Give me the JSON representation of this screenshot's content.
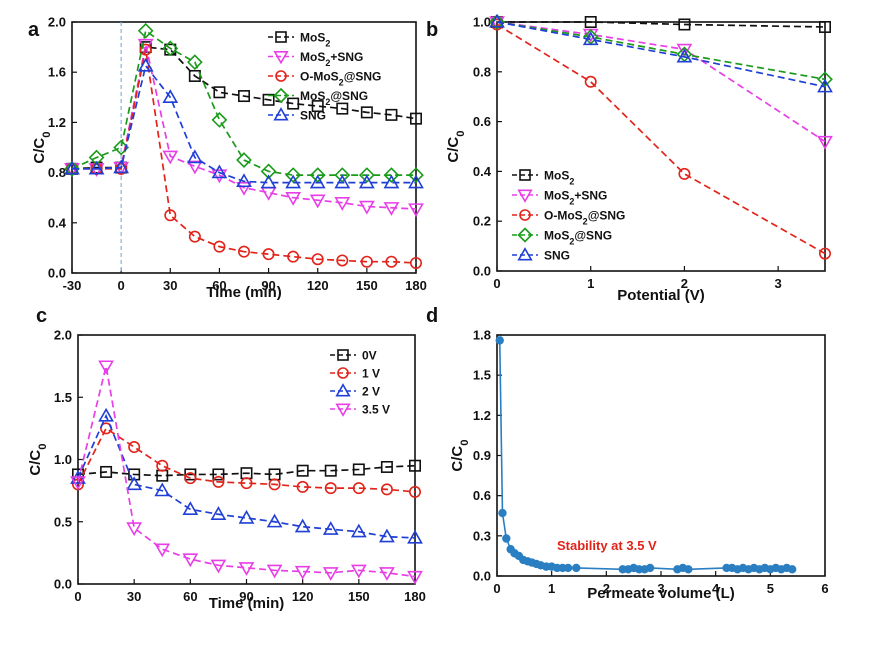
{
  "chart_data": [
    {
      "id": "a",
      "panel_label": "a",
      "type": "line",
      "xlabel": "Time (min)",
      "ylabel": "C/C0",
      "xlim": [
        -30,
        180
      ],
      "ylim": [
        0.0,
        2.0
      ],
      "xticks": [
        -30,
        0,
        30,
        60,
        90,
        120,
        150,
        180
      ],
      "yticks": [
        0.0,
        0.4,
        0.8,
        1.2,
        1.6,
        2.0
      ],
      "ytick_labels": [
        "0.0",
        "0.4",
        "0.8",
        "1.2",
        "1.6",
        "2.0"
      ],
      "vline_x": 0,
      "legend_position": "top-right",
      "series": [
        {
          "name": "MoS2",
          "color": "#111111",
          "marker": "square",
          "x": [
            -30,
            -15,
            0,
            15,
            30,
            45,
            60,
            75,
            90,
            105,
            120,
            135,
            150,
            165,
            180
          ],
          "y": [
            0.83,
            0.84,
            0.84,
            1.8,
            1.78,
            1.57,
            1.44,
            1.41,
            1.38,
            1.35,
            1.33,
            1.31,
            1.28,
            1.26,
            1.23
          ]
        },
        {
          "name": "MoS2+SNG",
          "color": "#e83ee8",
          "marker": "triangle-down",
          "x": [
            -30,
            -15,
            0,
            15,
            30,
            45,
            60,
            75,
            90,
            105,
            120,
            135,
            150,
            165,
            180
          ],
          "y": [
            0.83,
            0.83,
            0.84,
            1.82,
            0.93,
            0.85,
            0.78,
            0.68,
            0.64,
            0.6,
            0.58,
            0.56,
            0.53,
            0.52,
            0.51
          ]
        },
        {
          "name": "O-MoS2@SNG",
          "color": "#e2231a",
          "marker": "circle",
          "x": [
            -30,
            -15,
            0,
            15,
            30,
            45,
            60,
            75,
            90,
            105,
            120,
            135,
            150,
            165,
            180
          ],
          "y": [
            0.83,
            0.83,
            0.83,
            1.78,
            0.46,
            0.29,
            0.21,
            0.17,
            0.15,
            0.13,
            0.11,
            0.1,
            0.09,
            0.09,
            0.08
          ]
        },
        {
          "name": "MoS2@SNG",
          "color": "#1a9b1a",
          "marker": "diamond",
          "x": [
            -30,
            -15,
            0,
            15,
            30,
            45,
            60,
            75,
            90,
            105,
            120,
            135,
            150,
            165,
            180
          ],
          "y": [
            0.83,
            0.92,
            1.0,
            1.93,
            1.79,
            1.68,
            1.22,
            0.9,
            0.81,
            0.78,
            0.78,
            0.78,
            0.78,
            0.78,
            0.78
          ]
        },
        {
          "name": "SNG",
          "color": "#1f3fd6",
          "marker": "triangle-up",
          "x": [
            -30,
            -15,
            0,
            15,
            30,
            45,
            60,
            75,
            90,
            105,
            120,
            135,
            150,
            165,
            180
          ],
          "y": [
            0.83,
            0.83,
            0.84,
            1.65,
            1.4,
            0.92,
            0.8,
            0.73,
            0.72,
            0.72,
            0.72,
            0.72,
            0.72,
            0.72,
            0.72
          ]
        }
      ]
    },
    {
      "id": "b",
      "panel_label": "b",
      "type": "line",
      "xlabel": "Potential (V)",
      "ylabel": "C/C0",
      "xlim": [
        0,
        3.5
      ],
      "ylim": [
        0.0,
        1.0
      ],
      "xticks": [
        0,
        1,
        2,
        3
      ],
      "yticks": [
        0.0,
        0.2,
        0.4,
        0.6,
        0.8,
        1.0
      ],
      "ytick_labels": [
        "0.0",
        "0.2",
        "0.4",
        "0.6",
        "0.8",
        "1.0"
      ],
      "legend_position": "middle-left",
      "series": [
        {
          "name": "MoS2",
          "color": "#111111",
          "marker": "square",
          "x": [
            0,
            1,
            2,
            3.5
          ],
          "y": [
            1.0,
            1.0,
            0.99,
            0.98
          ]
        },
        {
          "name": "MoS2+SNG",
          "color": "#e83ee8",
          "marker": "triangle-down",
          "x": [
            0,
            1,
            2,
            3.5
          ],
          "y": [
            1.0,
            0.95,
            0.89,
            0.52
          ]
        },
        {
          "name": "O-MoS2@SNG",
          "color": "#e2231a",
          "marker": "circle",
          "x": [
            0,
            1,
            2,
            3.5
          ],
          "y": [
            0.99,
            0.76,
            0.39,
            0.07
          ]
        },
        {
          "name": "MoS2@SNG",
          "color": "#1a9b1a",
          "marker": "diamond",
          "x": [
            0,
            1,
            2,
            3.5
          ],
          "y": [
            1.0,
            0.94,
            0.87,
            0.77
          ]
        },
        {
          "name": "SNG",
          "color": "#1f3fd6",
          "marker": "triangle-up",
          "x": [
            0,
            1,
            2,
            3.5
          ],
          "y": [
            1.0,
            0.93,
            0.86,
            0.74
          ]
        }
      ]
    },
    {
      "id": "c",
      "panel_label": "c",
      "type": "line",
      "xlabel": "Time (min)",
      "ylabel": "C/C0",
      "xlim": [
        0,
        180
      ],
      "ylim": [
        0.0,
        2.0
      ],
      "xticks": [
        0,
        30,
        60,
        90,
        120,
        150,
        180
      ],
      "yticks": [
        0.0,
        0.5,
        1.0,
        1.5,
        2.0
      ],
      "ytick_labels": [
        "0.0",
        "0.5",
        "1.0",
        "1.5",
        "2.0"
      ],
      "legend_position": "top-right",
      "series": [
        {
          "name": "0V",
          "color": "#111111",
          "marker": "square",
          "x": [
            0,
            15,
            30,
            45,
            60,
            75,
            90,
            105,
            120,
            135,
            150,
            165,
            180
          ],
          "y": [
            0.88,
            0.9,
            0.88,
            0.87,
            0.88,
            0.88,
            0.89,
            0.88,
            0.91,
            0.91,
            0.92,
            0.94,
            0.95
          ]
        },
        {
          "name": "1 V",
          "color": "#e2231a",
          "marker": "circle",
          "x": [
            0,
            15,
            30,
            45,
            60,
            75,
            90,
            105,
            120,
            135,
            150,
            165,
            180
          ],
          "y": [
            0.8,
            1.25,
            1.1,
            0.95,
            0.85,
            0.82,
            0.81,
            0.8,
            0.78,
            0.77,
            0.77,
            0.76,
            0.74
          ]
        },
        {
          "name": "2 V",
          "color": "#1f3fd6",
          "marker": "triangle-up",
          "x": [
            0,
            15,
            30,
            45,
            60,
            75,
            90,
            105,
            120,
            135,
            150,
            165,
            180
          ],
          "y": [
            0.85,
            1.35,
            0.8,
            0.75,
            0.6,
            0.56,
            0.53,
            0.5,
            0.46,
            0.44,
            0.42,
            0.38,
            0.37
          ]
        },
        {
          "name": "3.5 V",
          "color": "#e83ee8",
          "marker": "triangle-down",
          "x": [
            0,
            15,
            30,
            45,
            60,
            75,
            90,
            105,
            120,
            135,
            150,
            165,
            180
          ],
          "y": [
            0.82,
            1.75,
            0.45,
            0.28,
            0.2,
            0.15,
            0.13,
            0.11,
            0.1,
            0.09,
            0.11,
            0.09,
            0.06
          ]
        }
      ]
    },
    {
      "id": "d",
      "panel_label": "d",
      "type": "line",
      "xlabel": "Permeate volume (L)",
      "ylabel": "C/C0",
      "xlim": [
        0,
        6
      ],
      "ylim": [
        0.0,
        1.8
      ],
      "xticks": [
        0,
        1,
        2,
        3,
        4,
        5,
        6
      ],
      "yticks": [
        0.0,
        0.3,
        0.6,
        0.9,
        1.2,
        1.5,
        1.8
      ],
      "ytick_labels": [
        "0.0",
        "0.3",
        "0.6",
        "0.9",
        "1.2",
        "1.5",
        "1.8"
      ],
      "annotation": "Stability at 3.5 V",
      "series": [
        {
          "name": "",
          "color": "#2a7ec2",
          "marker": "circle",
          "x": [
            0.05,
            0.1,
            0.17,
            0.25,
            0.32,
            0.4,
            0.48,
            0.56,
            0.64,
            0.72,
            0.8,
            0.9,
            1.0,
            1.1,
            1.2,
            1.3,
            1.45,
            2.3,
            2.4,
            2.5,
            2.6,
            2.7,
            2.8,
            3.3,
            3.4,
            3.5,
            4.2,
            4.3,
            4.4,
            4.5,
            4.6,
            4.7,
            4.8,
            4.9,
            5.0,
            5.1,
            5.2,
            5.3,
            5.4
          ],
          "y": [
            1.76,
            0.47,
            0.28,
            0.2,
            0.17,
            0.15,
            0.12,
            0.11,
            0.1,
            0.09,
            0.08,
            0.07,
            0.07,
            0.06,
            0.06,
            0.06,
            0.06,
            0.05,
            0.05,
            0.06,
            0.05,
            0.05,
            0.06,
            0.05,
            0.06,
            0.05,
            0.06,
            0.06,
            0.05,
            0.06,
            0.05,
            0.06,
            0.05,
            0.06,
            0.05,
            0.06,
            0.05,
            0.06,
            0.05
          ]
        }
      ]
    }
  ]
}
